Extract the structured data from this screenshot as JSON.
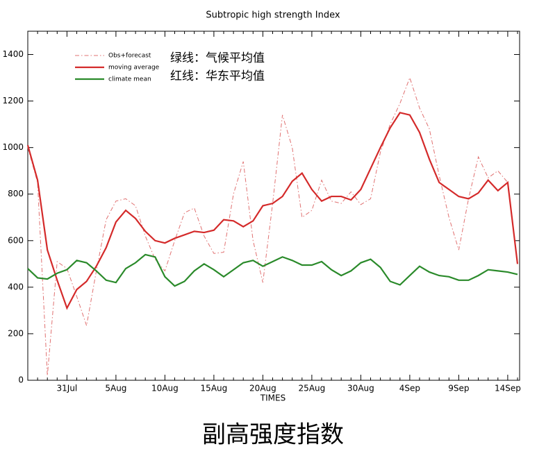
{
  "chart_data": {
    "type": "line",
    "title": "Subtropic high strength Index",
    "xlabel": "TIMES",
    "caption": "副高强度指数",
    "annotations": [
      "绿线：气候平均值",
      "红线：华东平均值"
    ],
    "legend": "upper left",
    "categories": [
      null,
      null,
      null,
      null,
      "31Jul",
      null,
      null,
      null,
      null,
      "5Aug",
      null,
      null,
      null,
      null,
      "10Aug",
      null,
      null,
      null,
      null,
      "15Aug",
      null,
      null,
      null,
      null,
      "20Aug",
      null,
      null,
      null,
      null,
      "25Aug",
      null,
      null,
      null,
      null,
      "30Aug",
      null,
      null,
      null,
      null,
      "4Sep",
      null,
      null,
      null,
      null,
      "9Sep",
      null,
      null,
      null,
      null,
      "14Sep",
      null
    ],
    "ylim": [
      0,
      1500
    ],
    "yticks": [
      0,
      200,
      400,
      600,
      800,
      1000,
      1200,
      1400
    ],
    "series": [
      {
        "name": "Obs+forecast",
        "color": "#e07070",
        "line_style": "dashdot",
        "values": [
          1000,
          850,
          20,
          510,
          480,
          360,
          235,
          470,
          690,
          770,
          780,
          750,
          620,
          520,
          470,
          600,
          720,
          740,
          620,
          545,
          550,
          800,
          940,
          600,
          420,
          760,
          1140,
          1000,
          700,
          730,
          860,
          770,
          760,
          810,
          755,
          780,
          980,
          1100,
          1190,
          1300,
          1170,
          1080,
          880,
          700,
          560,
          780,
          960,
          870,
          900,
          850,
          500
        ]
      },
      {
        "name": "moving average",
        "color": "#d42a2a",
        "line_style": "solid",
        "values": [
          1010,
          860,
          560,
          430,
          310,
          390,
          425,
          490,
          570,
          680,
          730,
          695,
          640,
          600,
          590,
          610,
          625,
          640,
          635,
          645,
          690,
          685,
          660,
          685,
          750,
          760,
          790,
          855,
          890,
          820,
          770,
          790,
          790,
          775,
          820,
          910,
          1000,
          1085,
          1150,
          1140,
          1065,
          950,
          850,
          820,
          790,
          780,
          805,
          860,
          815,
          850,
          500
        ]
      },
      {
        "name": "climate mean",
        "color": "#2a8a2a",
        "line_style": "solid",
        "values": [
          480,
          440,
          435,
          460,
          475,
          515,
          505,
          470,
          430,
          420,
          480,
          505,
          540,
          530,
          445,
          405,
          425,
          470,
          500,
          475,
          445,
          475,
          505,
          515,
          490,
          510,
          530,
          515,
          495,
          495,
          510,
          475,
          450,
          470,
          505,
          520,
          485,
          425,
          410,
          450,
          490,
          465,
          450,
          445,
          430,
          430,
          450,
          475,
          470,
          465,
          455
        ]
      }
    ]
  }
}
